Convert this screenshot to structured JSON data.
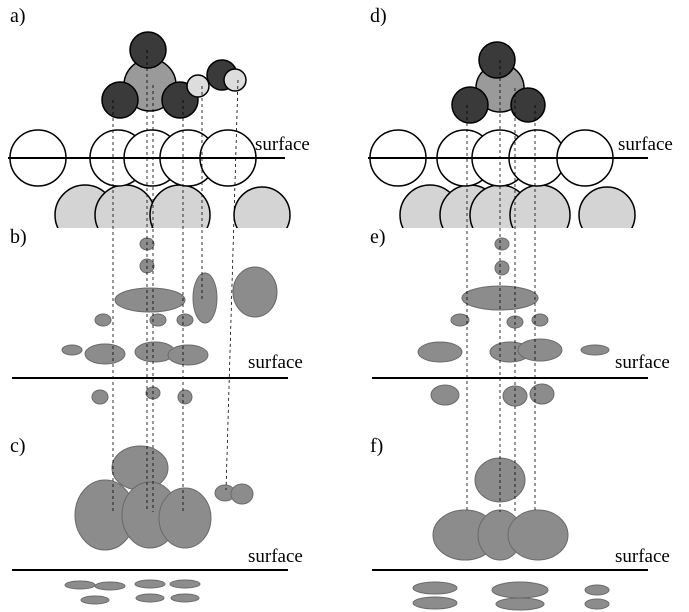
{
  "panels": [
    {
      "label": "a)",
      "surface": "surface"
    },
    {
      "label": "b)",
      "surface": "surface"
    },
    {
      "label": "c)",
      "surface": "surface"
    },
    {
      "label": "d)",
      "surface": "surface"
    },
    {
      "label": "e)",
      "surface": "surface"
    },
    {
      "label": "f)",
      "surface": "surface"
    }
  ]
}
